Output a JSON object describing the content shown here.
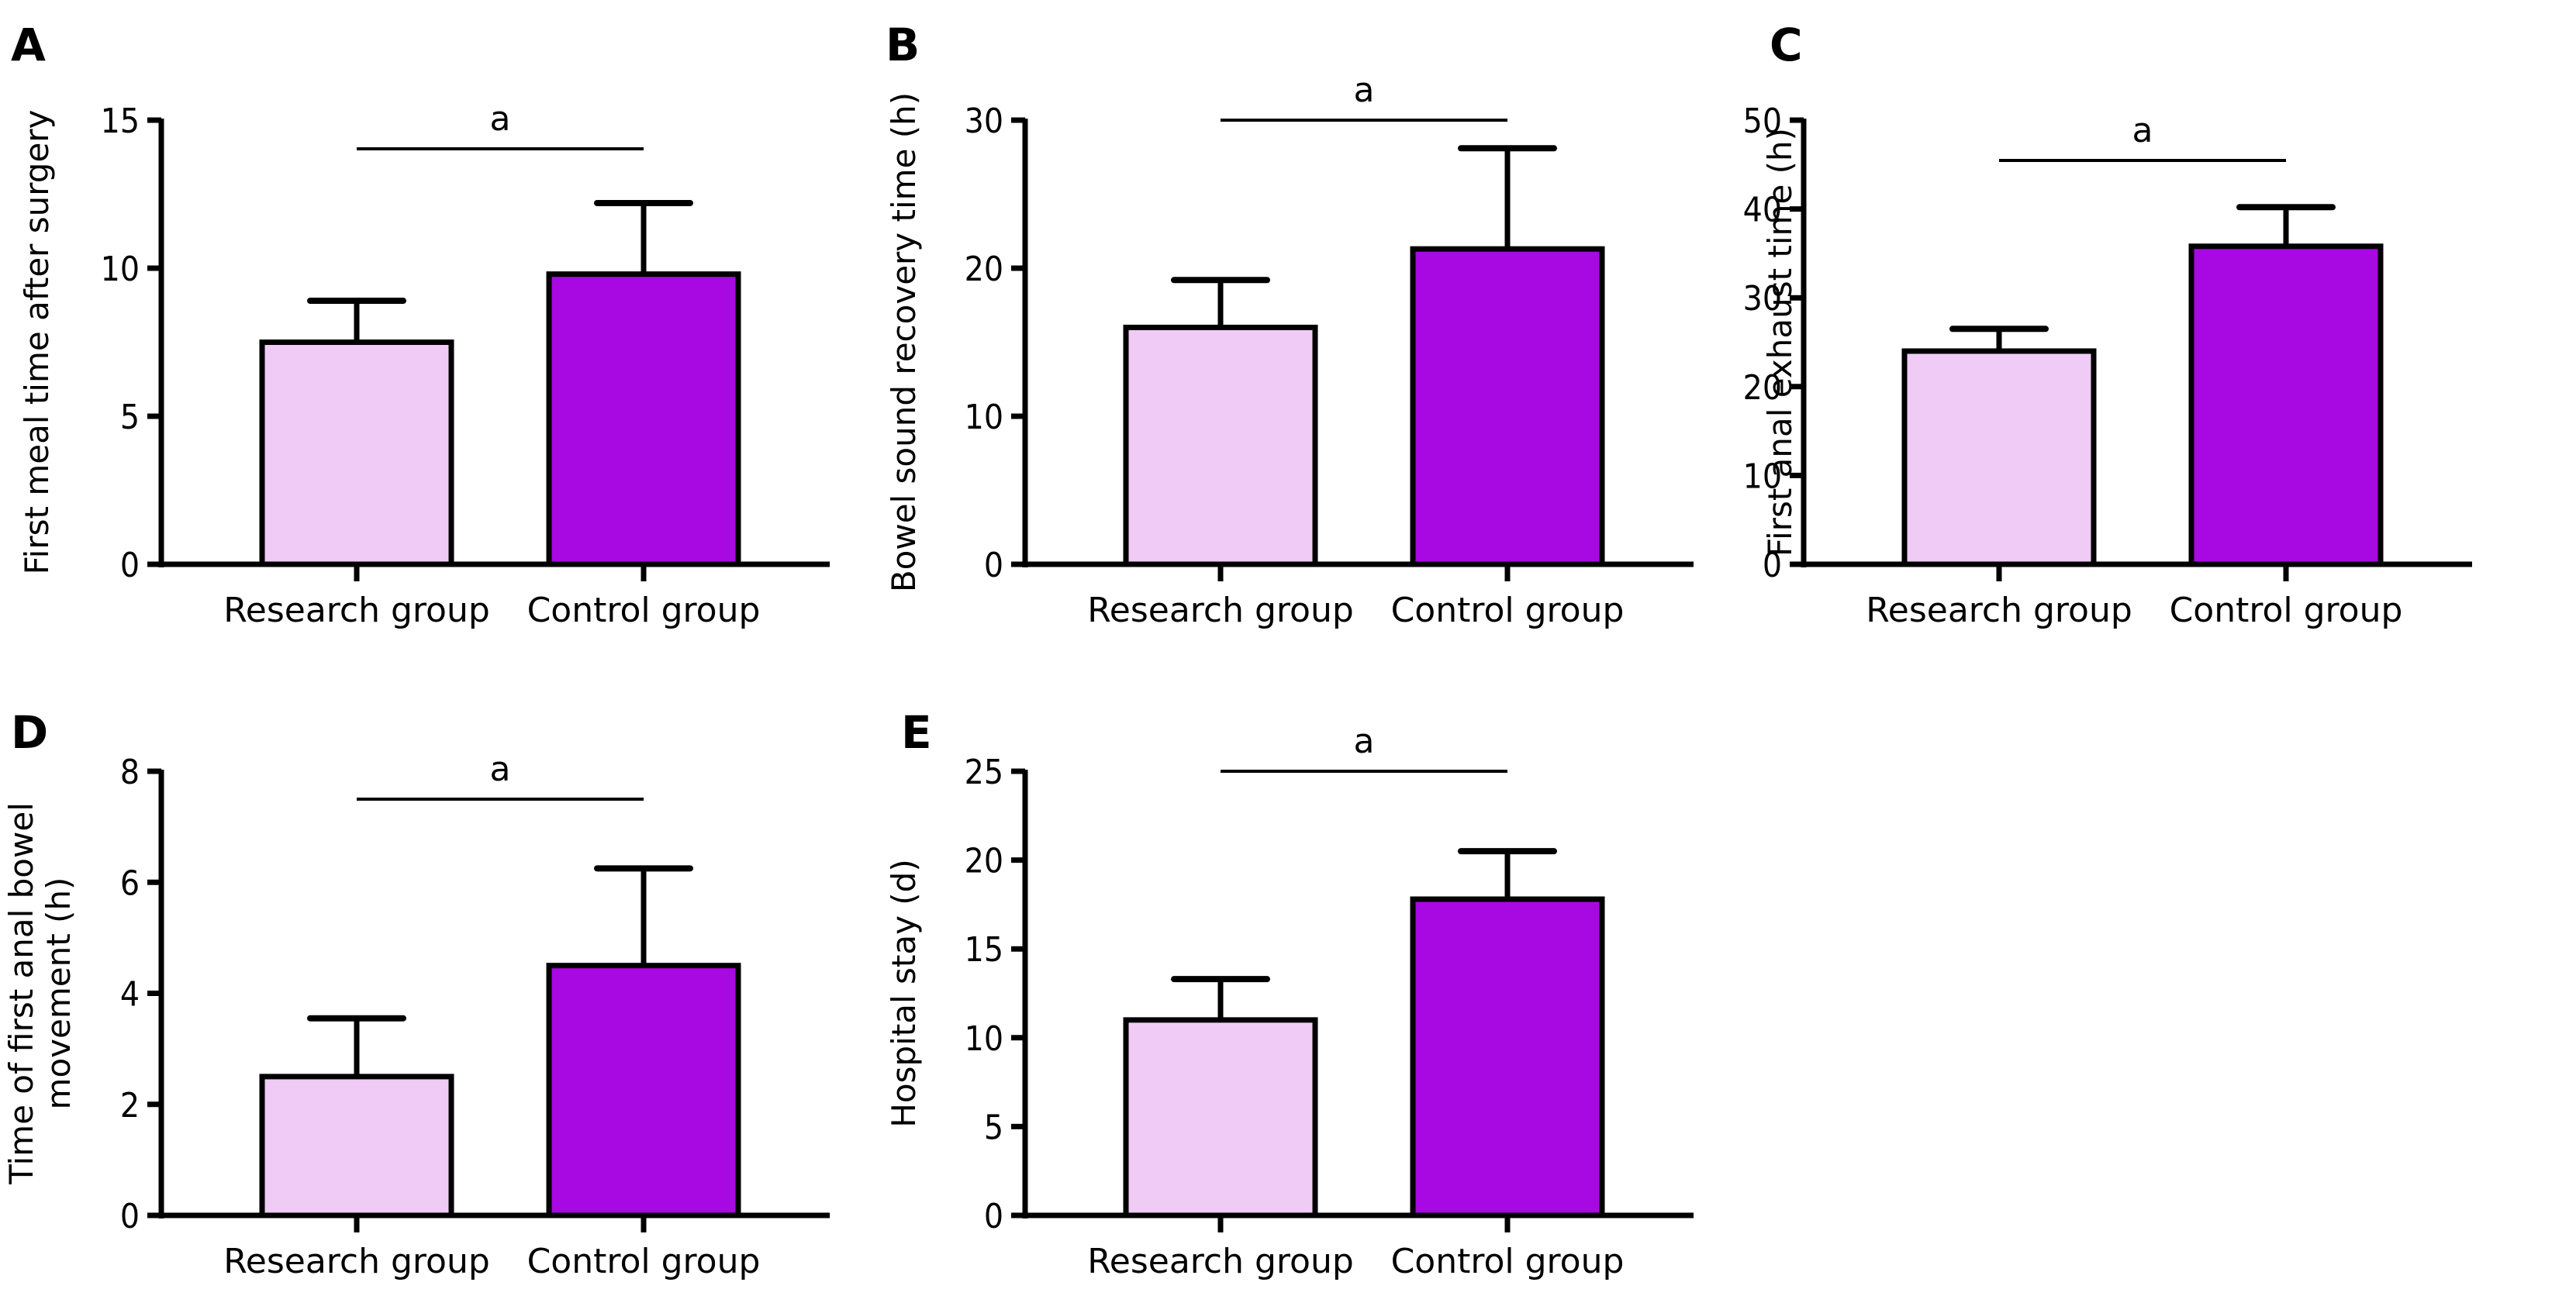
{
  "figure": {
    "colors": {
      "research": "#efcbf5",
      "control": "#a808e2",
      "stroke": "#000000"
    }
  },
  "chart_data": [
    {
      "panel": "A",
      "type": "bar",
      "title": "",
      "categories": [
        "Research group",
        "Control group"
      ],
      "values": [
        7.5,
        9.8
      ],
      "error_upper": [
        1.4,
        2.4
      ],
      "xlabel": "",
      "ylabel": "First meal time after surgery",
      "ylim": [
        0,
        15
      ],
      "yticks": [
        0,
        5,
        10,
        15
      ],
      "significance": {
        "label": "a",
        "between": [
          "Research group",
          "Control group"
        ]
      },
      "grid": false
    },
    {
      "panel": "B",
      "type": "bar",
      "title": "",
      "categories": [
        "Research group",
        "Control group"
      ],
      "values": [
        16.0,
        21.3
      ],
      "error_upper": [
        3.2,
        6.8
      ],
      "xlabel": "",
      "ylabel": "Bowel sound recovery time (h)",
      "ylim": [
        0,
        30
      ],
      "yticks": [
        0,
        10,
        20,
        30
      ],
      "significance": {
        "label": "a",
        "between": [
          "Research group",
          "Control group"
        ]
      },
      "grid": false
    },
    {
      "panel": "C",
      "type": "bar",
      "title": "",
      "categories": [
        "Research group",
        "Control group"
      ],
      "values": [
        24.0,
        35.8
      ],
      "error_upper": [
        2.5,
        4.4
      ],
      "xlabel": "",
      "ylabel": "First anal exhaust time (h)",
      "ylim": [
        0,
        50
      ],
      "yticks": [
        0,
        10,
        20,
        30,
        40,
        50
      ],
      "significance": {
        "label": "a",
        "between": [
          "Research group",
          "Control group"
        ]
      },
      "grid": false
    },
    {
      "panel": "D",
      "type": "bar",
      "title": "",
      "categories": [
        "Research group",
        "Control group"
      ],
      "values": [
        2.5,
        4.5
      ],
      "error_upper": [
        1.05,
        1.75
      ],
      "xlabel": "",
      "ylabel": [
        "Time of first anal bowel",
        "movement (h)"
      ],
      "ylim": [
        0,
        8
      ],
      "yticks": [
        0,
        2,
        4,
        6,
        8
      ],
      "significance": {
        "label": "a",
        "between": [
          "Research group",
          "Control group"
        ]
      },
      "grid": false
    },
    {
      "panel": "E",
      "type": "bar",
      "title": "",
      "categories": [
        "Research group",
        "Control group"
      ],
      "values": [
        11.0,
        17.8
      ],
      "error_upper": [
        2.3,
        2.7
      ],
      "xlabel": "",
      "ylabel": "Hospital stay (d)",
      "ylim": [
        0,
        25
      ],
      "yticks": [
        0,
        5,
        10,
        15,
        20,
        25
      ],
      "significance": {
        "label": "a",
        "between": [
          "Research group",
          "Control group"
        ]
      },
      "grid": false
    }
  ]
}
